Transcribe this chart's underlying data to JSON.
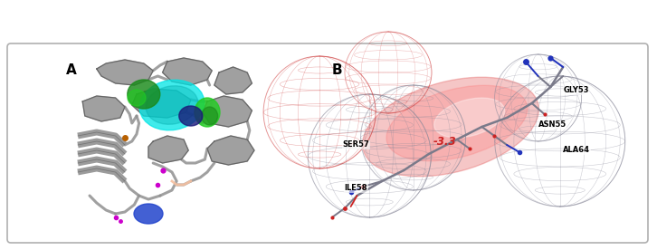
{
  "figure_bg": "#ffffff",
  "panel_bg": "#ffffff",
  "border_color": "#b0b0b0",
  "border_linewidth": 1.2,
  "label_A": "A",
  "label_B": "B",
  "label_fontsize": 11,
  "label_fontweight": "bold",
  "fig_width": 7.26,
  "fig_height": 2.76,
  "dpi": 100,
  "protein_gray": "#909090",
  "protein_gray_light": "#b8b8b8",
  "protein_gray_dark": "#606060",
  "cyan_color": "#00e5e5",
  "cyan_dark": "#00aaaa",
  "green1_color": "#1a8a1a",
  "green2_color": "#22cc22",
  "navy_color": "#1a1a7a",
  "blue_color": "#2244cc",
  "magenta_color": "#cc00cc",
  "orange_color": "#b86000",
  "peach_color": "#f5c0a0",
  "red_mesh_color": "#cc3333",
  "blue_mesh_color": "#5566aa",
  "gray_mesh_color": "#888899",
  "annotation_color": "#cc2222",
  "text_annotation": "-3.3",
  "residue_labels": [
    "GLY53",
    "ASN55",
    "ALA64",
    "SER57",
    "ILE58"
  ],
  "stick_gray": "#7a7a8a",
  "stick_blue": "#2233bb",
  "stick_red": "#cc2222",
  "red_surface": "#dd3333",
  "white_surface": "#f8f0f0"
}
